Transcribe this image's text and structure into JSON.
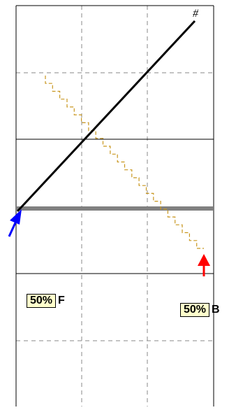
{
  "corner_mark": "#",
  "labels": {
    "front": {
      "percent": "50%",
      "tag": "F"
    },
    "back": {
      "percent": "50%",
      "tag": "B"
    }
  },
  "colors": {
    "grid_solid": "#000000",
    "grid_dashed": "#888888",
    "main_line": "#000000",
    "gray_band": "#808080",
    "stair_line": "#c8961e",
    "arrow_left": "#0000ff",
    "arrow_right": "#ff0000",
    "label_fill": "#ffffcc"
  },
  "icons": {
    "left_arrow": "arrow-up-right",
    "right_arrow": "arrow-up"
  }
}
